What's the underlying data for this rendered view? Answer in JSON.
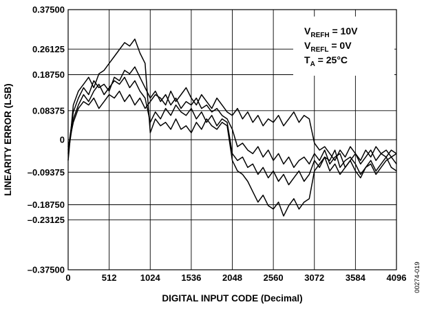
{
  "chart_data": {
    "type": "line",
    "title": "",
    "xlabel": "DIGITAL INPUT CODE (Decimal)",
    "ylabel": "LINEARITY ERROR (LSB)",
    "xlim": [
      0,
      4096
    ],
    "ylim": [
      -0.375,
      0.375
    ],
    "x_ticks": [
      {
        "value": 0,
        "label": "0"
      },
      {
        "value": 512,
        "label": "512"
      },
      {
        "value": 1024,
        "label": "1024"
      },
      {
        "value": 1536,
        "label": "1536"
      },
      {
        "value": 2048,
        "label": "2048"
      },
      {
        "value": 2560,
        "label": "2560"
      },
      {
        "value": 3072,
        "label": "3072"
      },
      {
        "value": 3584,
        "label": "3584"
      },
      {
        "value": 4096,
        "label": "4096"
      }
    ],
    "y_ticks": [
      {
        "value": 0.375,
        "label": "0.37500"
      },
      {
        "value": 0.26125,
        "label": "0.26125"
      },
      {
        "value": 0.1875,
        "label": "0.18750"
      },
      {
        "value": 0.08375,
        "label": "0.08375"
      },
      {
        "value": 0,
        "label": "0"
      },
      {
        "value": -0.09375,
        "label": "–0.09375"
      },
      {
        "value": -0.1875,
        "label": "–0.18750"
      },
      {
        "value": -0.23125,
        "label": "–0.23125"
      },
      {
        "value": -0.375,
        "label": "–0.37500"
      }
    ],
    "grid": true,
    "annotation": {
      "placement": "top-right",
      "lines": [
        {
          "main": "V",
          "sub": "REFH",
          "rest": " = 10V"
        },
        {
          "main": "V",
          "sub": "REFL",
          "rest": " = 0V"
        },
        {
          "main": "T",
          "sub": "A",
          "rest": " = 25°C"
        }
      ]
    },
    "series": [
      {
        "x": [
          0,
          64,
          128,
          192,
          256,
          320,
          384,
          448,
          512,
          576,
          640,
          704,
          768,
          832,
          896,
          960,
          1024,
          1088,
          1152,
          1216,
          1280,
          1344,
          1408,
          1472,
          1536,
          1600,
          1664,
          1728,
          1792,
          1856,
          1920,
          1984,
          2048,
          2112,
          2176,
          2240,
          2304,
          2368,
          2432,
          2496,
          2560,
          2624,
          2688,
          2752,
          2816,
          2880,
          2944,
          3008,
          3072,
          3136,
          3200,
          3264,
          3328,
          3392,
          3456,
          3520,
          3584,
          3648,
          3712,
          3776,
          3840,
          3904,
          3968,
          4032,
          4096
        ],
        "values": [
          -0.06,
          0.1,
          0.14,
          0.16,
          0.18,
          0.15,
          0.19,
          0.2,
          0.22,
          0.24,
          0.26,
          0.28,
          0.27,
          0.29,
          0.25,
          0.22,
          0.02,
          0.06,
          0.04,
          0.05,
          0.03,
          0.06,
          0.03,
          0.04,
          0.02,
          0.05,
          0.03,
          0.06,
          0.04,
          0.03,
          0.05,
          0.04,
          -0.06,
          -0.09,
          -0.1,
          -0.12,
          -0.15,
          -0.18,
          -0.16,
          -0.19,
          -0.2,
          -0.18,
          -0.22,
          -0.19,
          -0.17,
          -0.2,
          -0.18,
          -0.17,
          -0.09,
          -0.07,
          -0.05,
          -0.06,
          -0.03,
          -0.08,
          -0.06,
          -0.05,
          -0.07,
          -0.1,
          -0.08,
          -0.06,
          -0.09,
          -0.07,
          -0.05,
          -0.08,
          -0.09
        ]
      },
      {
        "x": [
          0,
          64,
          128,
          192,
          256,
          320,
          384,
          448,
          512,
          576,
          640,
          704,
          768,
          832,
          896,
          960,
          1024,
          1088,
          1152,
          1216,
          1280,
          1344,
          1408,
          1472,
          1536,
          1600,
          1664,
          1728,
          1792,
          1856,
          1920,
          1984,
          2048,
          2112,
          2176,
          2240,
          2304,
          2368,
          2432,
          2496,
          2560,
          2624,
          2688,
          2752,
          2816,
          2880,
          2944,
          3008,
          3072,
          3136,
          3200,
          3264,
          3328,
          3392,
          3456,
          3520,
          3584,
          3648,
          3712,
          3776,
          3840,
          3904,
          3968,
          4032,
          4096
        ],
        "values": [
          -0.03,
          0.08,
          0.12,
          0.15,
          0.13,
          0.17,
          0.15,
          0.16,
          0.14,
          0.18,
          0.17,
          0.2,
          0.19,
          0.21,
          0.18,
          0.15,
          0.12,
          0.14,
          0.11,
          0.13,
          0.1,
          0.12,
          0.09,
          0.11,
          0.1,
          0.12,
          0.09,
          0.1,
          0.08,
          0.09,
          0.07,
          0.06,
          0.03,
          -0.02,
          -0.01,
          -0.03,
          -0.04,
          -0.02,
          -0.05,
          -0.03,
          -0.06,
          -0.04,
          -0.07,
          -0.05,
          -0.08,
          -0.06,
          -0.05,
          -0.07,
          -0.04,
          -0.06,
          -0.03,
          -0.07,
          -0.05,
          -0.04,
          -0.08,
          -0.06,
          -0.04,
          -0.07,
          -0.05,
          -0.03,
          -0.06,
          -0.04,
          -0.05,
          -0.03,
          -0.04
        ]
      },
      {
        "x": [
          0,
          64,
          128,
          192,
          256,
          320,
          384,
          448,
          512,
          576,
          640,
          704,
          768,
          832,
          896,
          960,
          1024,
          1088,
          1152,
          1216,
          1280,
          1344,
          1408,
          1472,
          1536,
          1600,
          1664,
          1728,
          1792,
          1856,
          1920,
          1984,
          2048,
          2112,
          2176,
          2240,
          2304,
          2368,
          2432,
          2496,
          2560,
          2624,
          2688,
          2752,
          2816,
          2880,
          2944,
          3008,
          3072,
          3136,
          3200,
          3264,
          3328,
          3392,
          3456,
          3520,
          3584,
          3648,
          3712,
          3776,
          3840,
          3904,
          3968,
          4032,
          4096
        ],
        "values": [
          -0.02,
          0.05,
          0.09,
          0.11,
          0.1,
          0.12,
          0.09,
          0.11,
          0.13,
          0.12,
          0.14,
          0.11,
          0.13,
          0.1,
          0.12,
          0.09,
          0.11,
          0.13,
          0.12,
          0.1,
          0.14,
          0.11,
          0.13,
          0.15,
          0.12,
          0.1,
          0.13,
          0.11,
          0.09,
          0.12,
          0.1,
          0.08,
          0.07,
          0.09,
          0.06,
          0.08,
          0.05,
          0.07,
          0.04,
          0.06,
          0.05,
          0.07,
          0.04,
          0.06,
          0.08,
          0.05,
          0.07,
          0.06,
          -0.01,
          -0.03,
          -0.02,
          -0.04,
          -0.06,
          -0.03,
          -0.05,
          -0.02,
          -0.04,
          -0.06,
          -0.03,
          -0.05,
          -0.02,
          -0.04,
          -0.03,
          -0.05,
          -0.04
        ]
      },
      {
        "x": [
          0,
          64,
          128,
          192,
          256,
          320,
          384,
          448,
          512,
          576,
          640,
          704,
          768,
          832,
          896,
          960,
          1024,
          1088,
          1152,
          1216,
          1280,
          1344,
          1408,
          1472,
          1536,
          1600,
          1664,
          1728,
          1792,
          1856,
          1920,
          1984,
          2048,
          2112,
          2176,
          2240,
          2304,
          2368,
          2432,
          2496,
          2560,
          2624,
          2688,
          2752,
          2816,
          2880,
          2944,
          3008,
          3072,
          3136,
          3200,
          3264,
          3328,
          3392,
          3456,
          3520,
          3584,
          3648,
          3712,
          3776,
          3840,
          3904,
          3968,
          4032,
          4096
        ],
        "values": [
          -0.04,
          0.06,
          0.1,
          0.13,
          0.11,
          0.14,
          0.16,
          0.13,
          0.15,
          0.17,
          0.16,
          0.18,
          0.15,
          0.17,
          0.14,
          0.12,
          0.05,
          0.08,
          0.06,
          0.09,
          0.07,
          0.1,
          0.08,
          0.07,
          0.09,
          0.06,
          0.08,
          0.05,
          0.07,
          0.04,
          0.06,
          0.05,
          -0.04,
          -0.06,
          -0.05,
          -0.08,
          -0.07,
          -0.1,
          -0.08,
          -0.11,
          -0.09,
          -0.12,
          -0.1,
          -0.13,
          -0.11,
          -0.09,
          -0.12,
          -0.1,
          -0.06,
          -0.08,
          -0.05,
          -0.09,
          -0.07,
          -0.1,
          -0.08,
          -0.06,
          -0.09,
          -0.11,
          -0.08,
          -0.07,
          -0.1,
          -0.08,
          -0.06,
          -0.05,
          -0.07
        ]
      }
    ]
  },
  "figure_id": "00274-019"
}
